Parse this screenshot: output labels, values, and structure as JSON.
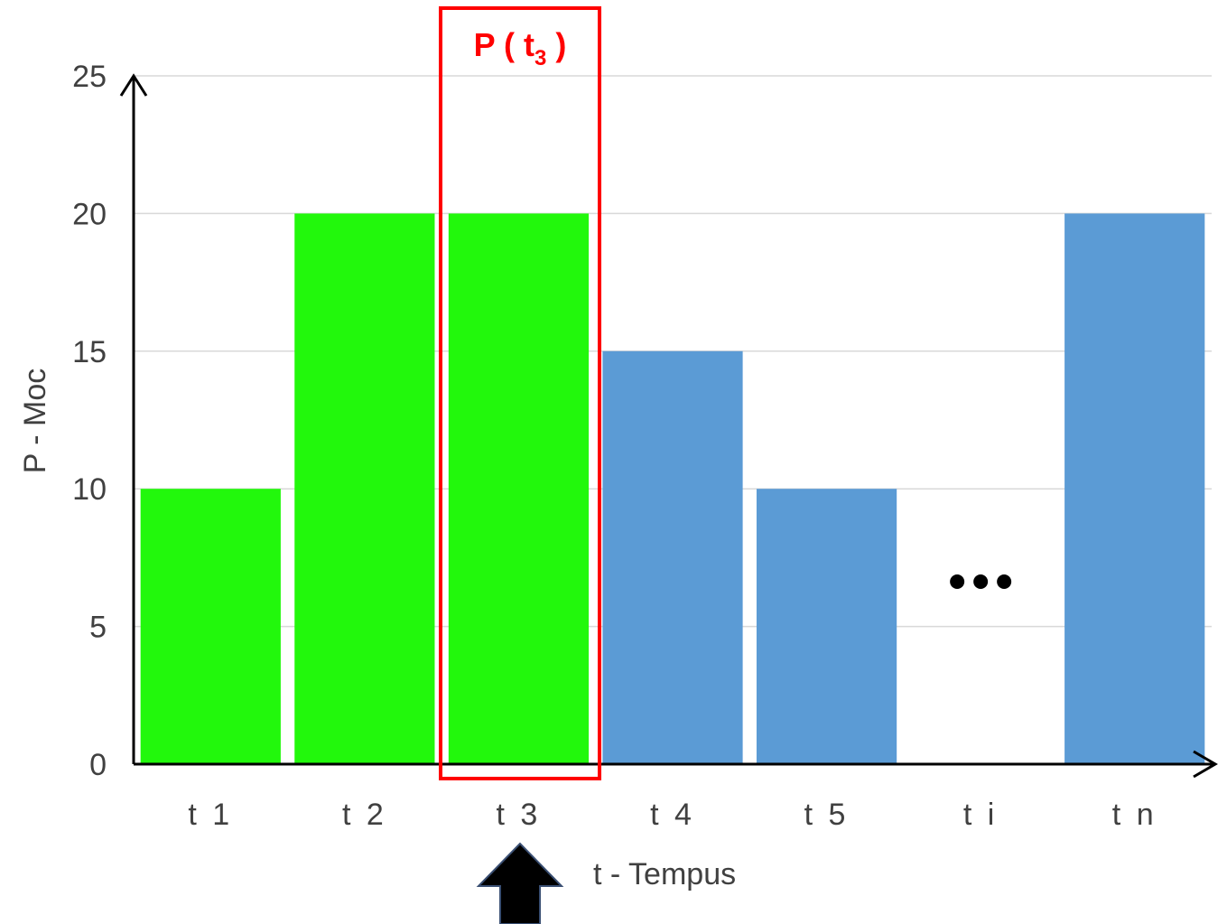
{
  "chart_data": {
    "type": "bar",
    "categories": [
      "t 1",
      "t 2",
      "t 3",
      "t 4",
      "t 5",
      "t i",
      "t n"
    ],
    "values": [
      10,
      20,
      20,
      15,
      10,
      null,
      20
    ],
    "bar_colors": [
      "#22f80c",
      "#22f80c",
      "#22f80c",
      "#5b9bd5",
      "#5b9bd5",
      null,
      "#5b9bd5"
    ],
    "highlight_color": "#22f80c",
    "default_color": "#5b9bd5",
    "ylim": [
      0,
      25
    ],
    "yticks": [
      0,
      5,
      10,
      15,
      20,
      25
    ],
    "ylabel": "P - Moc",
    "xlabel": "t - Tempus",
    "grid": true,
    "ellipsis_category": "t i",
    "highlight": {
      "category": "t 3",
      "label_main": "P ( t",
      "label_sub": "3",
      "label_close": " )",
      "color": "#ff0000"
    },
    "pointer": {
      "category": "t 3",
      "icon": "up-arrow-icon",
      "color": "#000000"
    }
  }
}
